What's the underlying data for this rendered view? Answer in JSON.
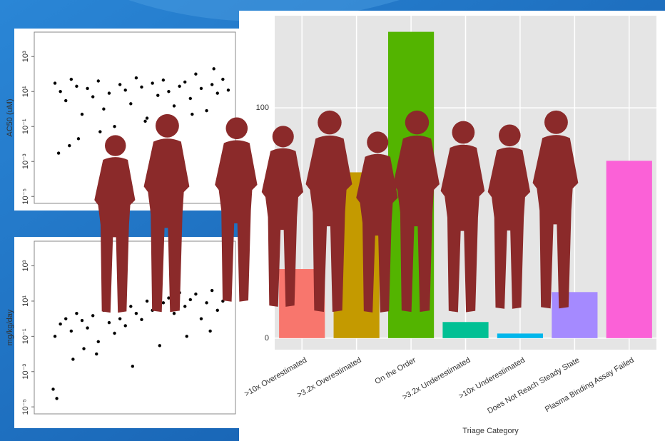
{
  "chart_data": [
    {
      "type": "scatter",
      "y_label": "AC50 (uM)",
      "log_y": true,
      "xlim": [
        0,
        100
      ],
      "ylim": [
        4e-06,
        25000
      ],
      "yticks": [
        {
          "value": 1000,
          "label": "10³"
        },
        {
          "value": 10,
          "label": "10¹"
        },
        {
          "value": 0.1,
          "label": "10⁻¹"
        },
        {
          "value": 0.001,
          "label": "10⁻³"
        },
        {
          "value": 1e-05,
          "label": "10⁻⁵"
        }
      ],
      "series": [
        {
          "name": null,
          "color": "#000000",
          "x": [
            2,
            5,
            8,
            11,
            14,
            17,
            20,
            23,
            26,
            29,
            32,
            35,
            38,
            41,
            44,
            47,
            50,
            53,
            56,
            59,
            62,
            65,
            68,
            71,
            74,
            77,
            80,
            83,
            86,
            89,
            92,
            95,
            98,
            4,
            15,
            27,
            40,
            52,
            66,
            78,
            90,
            10
          ],
          "values": [
            30,
            10,
            3,
            50,
            20,
            0.5,
            15,
            5,
            40,
            1,
            8,
            0.1,
            25,
            12,
            2,
            60,
            18,
            0.3,
            30,
            6,
            45,
            10,
            1.5,
            20,
            35,
            4,
            100,
            15,
            0.8,
            25,
            8,
            50,
            12,
            0.003,
            0.02,
            0.05,
            0.01,
            0.2,
            0.04,
            0.5,
            200,
            0.008
          ]
        }
      ]
    },
    {
      "type": "scatter",
      "y_label": "mg/kg/day",
      "log_y": true,
      "xlim": [
        0,
        100
      ],
      "ylim": [
        4e-06,
        25000
      ],
      "yticks": [
        {
          "value": 1000,
          "label": "10³"
        },
        {
          "value": 10,
          "label": "10¹"
        },
        {
          "value": 0.1,
          "label": "10⁻¹"
        },
        {
          "value": 0.001,
          "label": "10⁻³"
        },
        {
          "value": 1e-05,
          "label": "10⁻⁵"
        }
      ],
      "series": [
        {
          "name": null,
          "color": "#000000",
          "x": [
            2,
            5,
            8,
            11,
            14,
            17,
            20,
            23,
            26,
            29,
            32,
            35,
            38,
            41,
            44,
            47,
            50,
            53,
            56,
            59,
            62,
            65,
            68,
            71,
            74,
            77,
            80,
            83,
            86,
            89,
            92,
            95,
            98,
            3,
            12,
            25,
            45,
            60,
            75,
            88,
            1,
            18
          ],
          "values": [
            0.1,
            0.5,
            1,
            0.2,
            2,
            0.8,
            0.3,
            1.5,
            0.05,
            3,
            0.6,
            0.15,
            1,
            0.4,
            5,
            2,
            0.9,
            10,
            3,
            20,
            8,
            15,
            2,
            30,
            5,
            12,
            25,
            1,
            8,
            40,
            3,
            10,
            20,
            3e-05,
            0.005,
            0.01,
            0.002,
            0.03,
            0.1,
            0.2,
            0.0001,
            0.02
          ]
        }
      ]
    },
    {
      "type": "bar",
      "x_label": "Triage Category",
      "categories": [
        ">10x Overestimated",
        ">3.2x Overestimated",
        "On the Order",
        ">3.2x Underestimated",
        ">10x Underestimated",
        "Does Not Reach Steady State",
        "Plasma Binding Assay Failed"
      ],
      "values": [
        30,
        72,
        133,
        7,
        2,
        20,
        77
      ],
      "colors": [
        "#F8766D",
        "#C49A00",
        "#53B400",
        "#00C094",
        "#00B6EB",
        "#A58AFF",
        "#FB61D7"
      ],
      "ylim": [
        -5,
        140
      ],
      "yticks": [
        0,
        100
      ],
      "grid": true
    }
  ]
}
